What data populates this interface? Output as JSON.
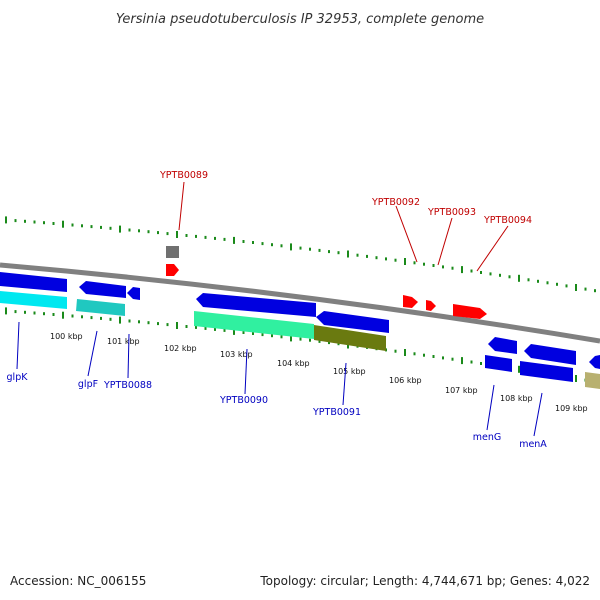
{
  "title": "Yersinia pseudotuberculosis IP 32953, complete genome",
  "footer": {
    "accession": "Accession: NC_006155",
    "summary": "Topology: circular; Length: 4,744,671 bp; Genes: 4,022"
  },
  "colors": {
    "backbone": "#808080",
    "tick": "#1a8a1a",
    "gene_blue": "#0000e0",
    "cds_cyan": "#00e8f0",
    "cds_teal": "#20c8c0",
    "cds_green": "#30f0a0",
    "cds_olive": "#6a7a10",
    "cds_khaki": "#b8b070",
    "gene_red": "#ff0000",
    "gene_gray": "#707070",
    "label_blue": "#0000c0",
    "label_red": "#c00000"
  },
  "scale_labels": [
    {
      "kbp": 100,
      "text": "100 kbp"
    },
    {
      "kbp": 101,
      "text": "101 kbp"
    },
    {
      "kbp": 102,
      "text": "102 kbp"
    },
    {
      "kbp": 103,
      "text": "103 kbp"
    },
    {
      "kbp": 104,
      "text": "104 kbp"
    },
    {
      "kbp": 105,
      "text": "105 kbp"
    },
    {
      "kbp": 106,
      "text": "106 kbp"
    },
    {
      "kbp": 107,
      "text": "107 kbp"
    },
    {
      "kbp": 108,
      "text": "108 kbp"
    },
    {
      "kbp": 109,
      "text": "109 kbp"
    }
  ],
  "labels_forward": [
    {
      "text": "YPTB0089"
    },
    {
      "text": "YPTB0092"
    },
    {
      "text": "YPTB0093"
    },
    {
      "text": "YPTB0094"
    }
  ],
  "labels_reverse": [
    {
      "text": "glpK"
    },
    {
      "text": "glpF"
    },
    {
      "text": "YPTB0088"
    },
    {
      "text": "YPTB0090"
    },
    {
      "text": "YPTB0091"
    },
    {
      "text": "menG"
    },
    {
      "text": "menA"
    }
  ]
}
